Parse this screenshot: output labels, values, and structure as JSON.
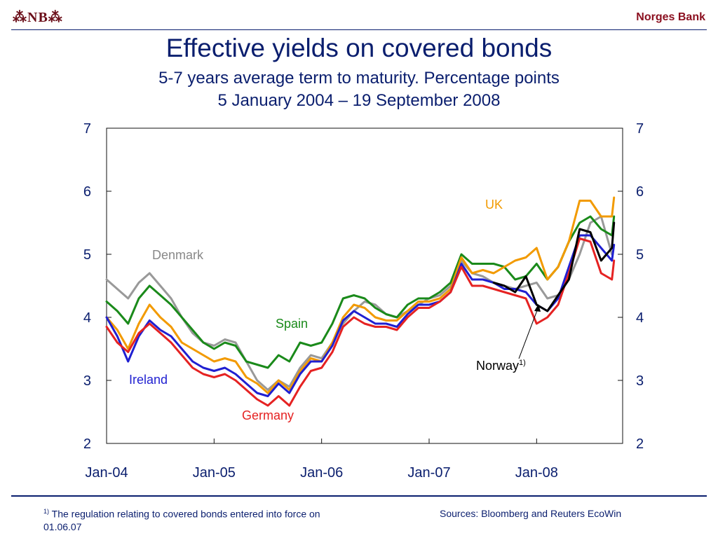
{
  "header": {
    "logo_text": "⁂NB⁂",
    "bank_name": "Norges Bank"
  },
  "chart_data": {
    "type": "line",
    "title": "Effective yields on covered bonds",
    "subtitle": "5-7 years average term to maturity. Percentage points",
    "date_range": "5 January 2004 – 19 September 2008",
    "xlabel": "",
    "ylabel": "",
    "ylim": [
      2,
      7
    ],
    "y_ticks": [
      "2",
      "3",
      "4",
      "5",
      "6",
      "7"
    ],
    "x_ticks": [
      "Jan-04",
      "Jan-05",
      "Jan-06",
      "Jan-07",
      "Jan-08"
    ],
    "x_tick_positions": [
      2004.0,
      2005.0,
      2006.0,
      2007.0,
      2008.0
    ],
    "xlim": [
      2004.0,
      2008.8
    ],
    "grid": false,
    "y_axis_both_sides": true,
    "series": [
      {
        "name": "Denmark",
        "color": "#999999",
        "x": [
          2004.0,
          2004.1,
          2004.2,
          2004.3,
          2004.4,
          2004.5,
          2004.6,
          2004.7,
          2004.8,
          2004.9,
          2005.0,
          2005.1,
          2005.2,
          2005.3,
          2005.4,
          2005.5,
          2005.6,
          2005.7,
          2005.8,
          2005.9,
          2006.0,
          2006.1,
          2006.2,
          2006.3,
          2006.4,
          2006.5,
          2006.6,
          2006.7,
          2006.8,
          2006.9,
          2007.0,
          2007.1,
          2007.2,
          2007.3,
          2007.4,
          2007.5,
          2007.6,
          2007.7,
          2007.8,
          2007.9,
          2008.0,
          2008.1,
          2008.2,
          2008.3,
          2008.4,
          2008.5,
          2008.6,
          2008.7
        ],
        "values": [
          4.6,
          4.45,
          4.3,
          4.55,
          4.7,
          4.5,
          4.3,
          4.0,
          3.75,
          3.6,
          3.55,
          3.65,
          3.6,
          3.3,
          3.0,
          2.85,
          3.0,
          2.9,
          3.2,
          3.4,
          3.35,
          3.6,
          3.9,
          4.1,
          4.25,
          4.2,
          4.05,
          4.0,
          4.1,
          4.2,
          4.3,
          4.35,
          4.5,
          4.9,
          4.7,
          4.65,
          4.55,
          4.5,
          4.45,
          4.5,
          4.55,
          4.3,
          4.35,
          4.6,
          5.0,
          5.5,
          5.6,
          5.0
        ]
      },
      {
        "name": "Spain",
        "color": "#1a8a1a",
        "x": [
          2004.0,
          2004.1,
          2004.2,
          2004.3,
          2004.4,
          2004.5,
          2004.6,
          2004.7,
          2004.8,
          2004.9,
          2005.0,
          2005.1,
          2005.2,
          2005.3,
          2005.4,
          2005.5,
          2005.6,
          2005.7,
          2005.8,
          2005.9,
          2006.0,
          2006.1,
          2006.2,
          2006.3,
          2006.4,
          2006.5,
          2006.6,
          2006.7,
          2006.8,
          2006.9,
          2007.0,
          2007.1,
          2007.2,
          2007.3,
          2007.4,
          2007.5,
          2007.6,
          2007.7,
          2007.8,
          2007.9,
          2008.0,
          2008.1,
          2008.2,
          2008.3,
          2008.4,
          2008.5,
          2008.6,
          2008.7,
          2008.72
        ],
        "values": [
          4.25,
          4.1,
          3.9,
          4.3,
          4.5,
          4.35,
          4.2,
          4.0,
          3.8,
          3.6,
          3.5,
          3.6,
          3.55,
          3.3,
          3.25,
          3.2,
          3.4,
          3.3,
          3.6,
          3.55,
          3.6,
          3.9,
          4.3,
          4.35,
          4.3,
          4.15,
          4.05,
          4.0,
          4.2,
          4.3,
          4.3,
          4.4,
          4.55,
          5.0,
          4.85,
          4.85,
          4.85,
          4.8,
          4.6,
          4.65,
          4.85,
          4.6,
          4.8,
          5.2,
          5.5,
          5.6,
          5.4,
          5.3,
          5.6
        ]
      },
      {
        "name": "UK",
        "color": "#f29a00",
        "x": [
          2004.0,
          2004.1,
          2004.2,
          2004.3,
          2004.4,
          2004.5,
          2004.6,
          2004.7,
          2004.8,
          2004.9,
          2005.0,
          2005.1,
          2005.2,
          2005.3,
          2005.4,
          2005.5,
          2005.6,
          2005.7,
          2005.8,
          2005.9,
          2006.0,
          2006.1,
          2006.2,
          2006.3,
          2006.4,
          2006.5,
          2006.6,
          2006.7,
          2006.8,
          2006.9,
          2007.0,
          2007.1,
          2007.2,
          2007.3,
          2007.4,
          2007.5,
          2007.6,
          2007.7,
          2007.8,
          2007.9,
          2008.0,
          2008.1,
          2008.2,
          2008.3,
          2008.4,
          2008.5,
          2008.6,
          2008.7,
          2008.72
        ],
        "values": [
          4.0,
          3.8,
          3.5,
          3.9,
          4.2,
          4.0,
          3.85,
          3.6,
          3.5,
          3.4,
          3.3,
          3.35,
          3.3,
          3.05,
          2.95,
          2.8,
          3.0,
          2.85,
          3.15,
          3.35,
          3.3,
          3.6,
          4.0,
          4.2,
          4.15,
          4.0,
          3.95,
          3.95,
          4.1,
          4.25,
          4.25,
          4.3,
          4.45,
          4.95,
          4.7,
          4.75,
          4.7,
          4.8,
          4.9,
          4.95,
          5.1,
          4.6,
          4.8,
          5.2,
          5.85,
          5.85,
          5.6,
          5.6,
          5.9
        ]
      },
      {
        "name": "Ireland",
        "color": "#1f1fd1",
        "x": [
          2004.0,
          2004.1,
          2004.2,
          2004.3,
          2004.4,
          2004.5,
          2004.6,
          2004.7,
          2004.8,
          2004.9,
          2005.0,
          2005.1,
          2005.2,
          2005.3,
          2005.4,
          2005.5,
          2005.6,
          2005.7,
          2005.8,
          2005.9,
          2006.0,
          2006.1,
          2006.2,
          2006.3,
          2006.4,
          2006.5,
          2006.6,
          2006.7,
          2006.8,
          2006.9,
          2007.0,
          2007.1,
          2007.2,
          2007.3,
          2007.4,
          2007.5,
          2007.6,
          2007.7,
          2007.8,
          2007.9,
          2008.0,
          2008.1,
          2008.2,
          2008.3,
          2008.4,
          2008.5,
          2008.6,
          2008.7,
          2008.72
        ],
        "values": [
          4.0,
          3.7,
          3.3,
          3.7,
          3.95,
          3.8,
          3.7,
          3.5,
          3.3,
          3.2,
          3.15,
          3.2,
          3.1,
          2.95,
          2.8,
          2.75,
          2.95,
          2.8,
          3.1,
          3.3,
          3.3,
          3.55,
          3.95,
          4.1,
          4.0,
          3.9,
          3.9,
          3.85,
          4.05,
          4.2,
          4.2,
          4.25,
          4.4,
          4.85,
          4.6,
          4.6,
          4.55,
          4.45,
          4.45,
          4.4,
          4.2,
          4.1,
          4.3,
          4.8,
          5.3,
          5.3,
          5.1,
          4.9,
          5.15
        ]
      },
      {
        "name": "Germany",
        "color": "#e52222",
        "x": [
          2004.0,
          2004.1,
          2004.2,
          2004.3,
          2004.4,
          2004.5,
          2004.6,
          2004.7,
          2004.8,
          2004.9,
          2005.0,
          2005.1,
          2005.2,
          2005.3,
          2005.4,
          2005.5,
          2005.6,
          2005.7,
          2005.8,
          2005.9,
          2006.0,
          2006.1,
          2006.2,
          2006.3,
          2006.4,
          2006.5,
          2006.6,
          2006.7,
          2006.8,
          2006.9,
          2007.0,
          2007.1,
          2007.2,
          2007.3,
          2007.4,
          2007.5,
          2007.6,
          2007.7,
          2007.8,
          2007.9,
          2008.0,
          2008.1,
          2008.2,
          2008.3,
          2008.4,
          2008.5,
          2008.6,
          2008.7,
          2008.72
        ],
        "values": [
          3.85,
          3.6,
          3.45,
          3.75,
          3.9,
          3.75,
          3.6,
          3.4,
          3.2,
          3.1,
          3.05,
          3.1,
          3.0,
          2.85,
          2.7,
          2.6,
          2.75,
          2.6,
          2.9,
          3.15,
          3.2,
          3.45,
          3.85,
          4.0,
          3.9,
          3.85,
          3.85,
          3.8,
          4.0,
          4.15,
          4.15,
          4.25,
          4.4,
          4.8,
          4.5,
          4.5,
          4.45,
          4.4,
          4.35,
          4.3,
          3.9,
          4.0,
          4.2,
          4.7,
          5.25,
          5.2,
          4.7,
          4.6,
          4.9
        ]
      },
      {
        "name": "Norway",
        "color": "#000000",
        "x": [
          2007.6,
          2007.7,
          2007.8,
          2007.9,
          2008.0,
          2008.1,
          2008.2,
          2008.3,
          2008.4,
          2008.5,
          2008.6,
          2008.7,
          2008.72
        ],
        "values": [
          4.55,
          4.5,
          4.4,
          4.65,
          4.2,
          4.1,
          4.35,
          4.6,
          5.4,
          5.35,
          4.9,
          5.1,
          5.5
        ]
      }
    ],
    "labels": {
      "denmark": "Denmark",
      "spain": "Spain",
      "uk": "UK",
      "ireland": "Ireland",
      "germany": "Germany",
      "norway": "Norway",
      "norway_sup": "1)"
    }
  },
  "footer": {
    "footnote_marker": "1)",
    "footnote_text": " The regulation relating to covered bonds entered into force on 01.06.07",
    "sources": "Sources: Bloomberg and Reuters EcoWin"
  }
}
